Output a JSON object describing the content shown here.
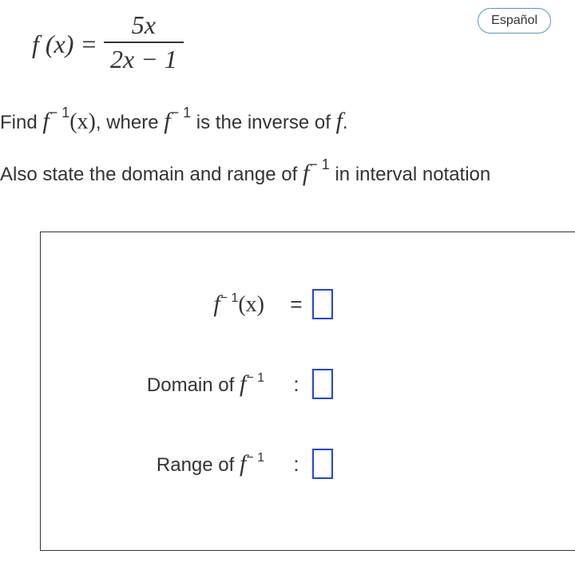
{
  "language_button": "Español",
  "main_formula": {
    "lhs": "f (x) =",
    "numerator": "5x",
    "denominator": "2x − 1"
  },
  "instruction1": {
    "prefix": "Find ",
    "expr1_f": "f",
    "expr1_sup": "− 1",
    "expr1_paren": "(x)",
    "mid": ", where ",
    "expr2_f": "f",
    "expr2_sup": "− 1",
    "suffix": " is the inverse of ",
    "final_f": "f",
    "period": "."
  },
  "instruction2": {
    "prefix": "Also state the domain and range of ",
    "expr_f": "f",
    "expr_sup": "− 1",
    "suffix": " in interval notation"
  },
  "answers": {
    "row1": {
      "f": "f",
      "sup": "− 1",
      "paren": "(x)",
      "sep": "="
    },
    "row2": {
      "label": "Domain of ",
      "f": "f",
      "sup": "− 1",
      "sep": ":"
    },
    "row3": {
      "label": "Range of ",
      "f": "f",
      "sup": "− 1",
      "sep": ":"
    }
  },
  "colors": {
    "input_border": "#2244dd",
    "button_border": "#5a9aa8",
    "text": "#333333",
    "background": "#ffffff"
  }
}
